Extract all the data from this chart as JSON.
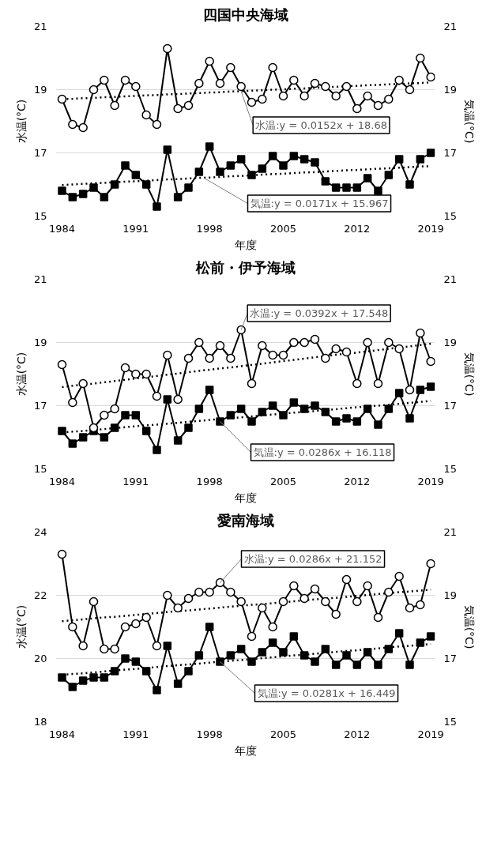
{
  "chart_data": [
    {
      "type": "line",
      "title": "四国中央海域",
      "xlabel": "年度",
      "ylabel": "水温(°C)",
      "y2label": "気温(°C)",
      "xlim": [
        1983.4,
        2019.4
      ],
      "xticks": [
        1984,
        1991,
        1998,
        2005,
        2012,
        2019
      ],
      "ylim": [
        15,
        21
      ],
      "yticks": [
        15,
        17,
        19,
        21
      ],
      "y2lim": [
        15,
        21
      ],
      "y2ticks": [
        15,
        17,
        19,
        21
      ],
      "grid": "y",
      "x": [
        1984,
        1985,
        1986,
        1987,
        1988,
        1989,
        1990,
        1991,
        1992,
        1993,
        1994,
        1995,
        1996,
        1997,
        1998,
        1999,
        2000,
        2001,
        2002,
        2003,
        2004,
        2005,
        2006,
        2007,
        2008,
        2009,
        2010,
        2011,
        2012,
        2013,
        2014,
        2015,
        2016,
        2017,
        2018,
        2019
      ],
      "series": [
        {
          "color": "#000000",
          "marker": "circle",
          "values": [
            18.7,
            17.9,
            17.8,
            19.0,
            19.3,
            18.5,
            19.3,
            19.1,
            18.2,
            17.9,
            20.3,
            18.4,
            18.5,
            19.2,
            19.9,
            19.2,
            19.7,
            19.1,
            18.6,
            18.7,
            19.7,
            18.8,
            19.3,
            18.8,
            19.2,
            19.1,
            18.8,
            19.1,
            18.4,
            18.8,
            18.5,
            18.7,
            19.3,
            19.0,
            20.0,
            19.4
          ]
        },
        {
          "color": "#000000",
          "marker": "square",
          "axis": "y2",
          "values": [
            15.8,
            15.6,
            15.7,
            15.9,
            15.6,
            16.0,
            16.6,
            16.3,
            16.0,
            15.3,
            17.1,
            15.6,
            15.9,
            16.4,
            17.2,
            16.4,
            16.6,
            16.8,
            16.3,
            16.5,
            16.9,
            16.6,
            16.9,
            16.8,
            16.7,
            16.1,
            15.9,
            15.9,
            15.9,
            16.2,
            15.8,
            16.3,
            16.8,
            16.0,
            16.8,
            17.0
          ]
        },
        {
          "type": "line",
          "color": "#000000",
          "marker": "none",
          "line_style": "dotted",
          "values": [
            18.7,
            18.71,
            18.73,
            18.74,
            18.76,
            18.77,
            18.79,
            18.8,
            18.82,
            18.83,
            18.85,
            18.86,
            18.88,
            18.89,
            18.91,
            18.92,
            18.94,
            18.95,
            18.97,
            18.98,
            19.0,
            19.01,
            19.03,
            19.04,
            19.06,
            19.08,
            19.09,
            19.11,
            19.12,
            19.14,
            19.15,
            19.17,
            19.18,
            19.2,
            19.21,
            19.23
          ]
        },
        {
          "type": "line",
          "color": "#000000",
          "marker": "none",
          "line_style": "dotted",
          "axis": "y2",
          "values": [
            15.98,
            16.0,
            16.02,
            16.04,
            16.05,
            16.07,
            16.09,
            16.1,
            16.12,
            16.14,
            16.16,
            16.17,
            16.19,
            16.21,
            16.22,
            16.24,
            16.26,
            16.27,
            16.29,
            16.31,
            16.33,
            16.34,
            16.36,
            16.38,
            16.39,
            16.41,
            16.43,
            16.45,
            16.46,
            16.48,
            16.5,
            16.51,
            16.53,
            16.55,
            16.57,
            16.58
          ]
        }
      ],
      "annotations": [
        {
          "text": "水温:y = 0.0152x + 18.68",
          "x": 2001,
          "y": 18.95
        },
        {
          "text": "気温:y = 0.0171x + 15.967",
          "x": 1997.5,
          "y": 16.2
        }
      ]
    },
    {
      "type": "line",
      "title": "松前・伊予海域",
      "xlabel": "年度",
      "ylabel": "水温(°C)",
      "y2label": "気温(°C)",
      "xlim": [
        1983.4,
        2019.4
      ],
      "xticks": [
        1984,
        1991,
        1998,
        2005,
        2012,
        2019
      ],
      "ylim": [
        15,
        21
      ],
      "yticks": [
        15,
        17,
        19,
        21
      ],
      "y2lim": [
        15,
        21
      ],
      "y2ticks": [
        15,
        17,
        19,
        21
      ],
      "grid": "y",
      "x": [
        1984,
        1985,
        1986,
        1987,
        1988,
        1989,
        1990,
        1991,
        1992,
        1993,
        1994,
        1995,
        1996,
        1997,
        1998,
        1999,
        2000,
        2001,
        2002,
        2003,
        2004,
        2005,
        2006,
        2007,
        2008,
        2009,
        2010,
        2011,
        2012,
        2013,
        2014,
        2015,
        2016,
        2017,
        2018,
        2019
      ],
      "series": [
        {
          "color": "#000000",
          "marker": "circle",
          "values": [
            18.3,
            17.1,
            17.7,
            16.3,
            16.7,
            16.9,
            18.2,
            18.0,
            18.0,
            17.3,
            18.6,
            17.2,
            18.5,
            19.0,
            18.5,
            18.9,
            18.5,
            19.4,
            17.7,
            18.9,
            18.6,
            18.6,
            19.0,
            19.0,
            19.1,
            18.5,
            18.8,
            18.7,
            17.7,
            19.0,
            17.7,
            19.0,
            18.8,
            17.5,
            19.3,
            18.4
          ]
        },
        {
          "color": "#000000",
          "marker": "square",
          "axis": "y2",
          "values": [
            16.2,
            15.8,
            16.0,
            16.2,
            16.0,
            16.3,
            16.7,
            16.7,
            16.2,
            15.6,
            17.2,
            15.9,
            16.3,
            16.9,
            17.5,
            16.5,
            16.7,
            16.9,
            16.5,
            16.8,
            17.0,
            16.7,
            17.1,
            16.9,
            17.0,
            16.8,
            16.5,
            16.6,
            16.5,
            16.9,
            16.4,
            16.9,
            17.4,
            16.6,
            17.5,
            17.6
          ]
        },
        {
          "type": "line",
          "color": "#000000",
          "marker": "none",
          "line_style": "dotted",
          "values": [
            17.59,
            17.63,
            17.67,
            17.7,
            17.74,
            17.78,
            17.82,
            17.86,
            17.9,
            17.94,
            17.98,
            18.02,
            18.06,
            18.1,
            18.14,
            18.18,
            18.21,
            18.25,
            18.29,
            18.33,
            18.37,
            18.41,
            18.45,
            18.49,
            18.53,
            18.57,
            18.61,
            18.65,
            18.68,
            18.72,
            18.76,
            18.8,
            18.84,
            18.88,
            18.92,
            18.96
          ]
        },
        {
          "type": "line",
          "color": "#000000",
          "marker": "none",
          "line_style": "dotted",
          "axis": "y2",
          "values": [
            16.15,
            16.18,
            16.2,
            16.23,
            16.26,
            16.29,
            16.32,
            16.35,
            16.38,
            16.4,
            16.43,
            16.46,
            16.49,
            16.52,
            16.55,
            16.58,
            16.6,
            16.63,
            16.66,
            16.69,
            16.72,
            16.75,
            16.78,
            16.8,
            16.83,
            16.86,
            16.89,
            16.92,
            16.95,
            16.98,
            17.0,
            17.03,
            17.06,
            17.09,
            17.12,
            17.15
          ]
        }
      ],
      "annotations": [
        {
          "text": "水温:y = 0.0392x + 17.548",
          "x": 2001,
          "y": 19.4
        },
        {
          "text": "気温:y = 0.0286x + 16.118",
          "x": 1999,
          "y": 16.5
        }
      ]
    },
    {
      "type": "line",
      "title": "愛南海域",
      "xlabel": "年度",
      "ylabel": "水温(°C)",
      "y2label": "気温(°C)",
      "xlim": [
        1983.4,
        2019.4
      ],
      "xticks": [
        1984,
        1991,
        1998,
        2005,
        2012,
        2019
      ],
      "ylim": [
        18,
        24
      ],
      "yticks": [
        18,
        20,
        22,
        24
      ],
      "y2lim": [
        15,
        21
      ],
      "y2ticks": [
        15,
        17,
        19,
        21
      ],
      "grid": "y",
      "x": [
        1984,
        1985,
        1986,
        1987,
        1988,
        1989,
        1990,
        1991,
        1992,
        1993,
        1994,
        1995,
        1996,
        1997,
        1998,
        1999,
        2000,
        2001,
        2002,
        2003,
        2004,
        2005,
        2006,
        2007,
        2008,
        2009,
        2010,
        2011,
        2012,
        2013,
        2014,
        2015,
        2016,
        2017,
        2018,
        2019
      ],
      "series": [
        {
          "color": "#000000",
          "marker": "circle",
          "values": [
            23.3,
            21.0,
            20.4,
            21.8,
            20.3,
            20.3,
            21.0,
            21.1,
            21.3,
            20.4,
            22.0,
            21.6,
            21.9,
            22.1,
            22.1,
            22.4,
            22.1,
            21.8,
            20.7,
            21.6,
            21.0,
            21.8,
            22.3,
            21.9,
            22.2,
            21.8,
            21.4,
            22.5,
            21.8,
            22.3,
            21.3,
            22.1,
            22.6,
            21.6,
            21.7,
            23.0
          ]
        },
        {
          "color": "#000000",
          "marker": "square",
          "axis": "y2",
          "values": [
            16.4,
            16.1,
            16.3,
            16.4,
            16.4,
            16.6,
            17.0,
            16.9,
            16.6,
            16.0,
            17.4,
            16.2,
            16.6,
            17.1,
            18.0,
            16.9,
            17.1,
            17.3,
            16.9,
            17.2,
            17.5,
            17.2,
            17.7,
            17.1,
            16.9,
            17.3,
            16.8,
            17.1,
            16.8,
            17.2,
            16.8,
            17.3,
            17.8,
            16.8,
            17.5,
            17.7
          ]
        },
        {
          "type": "line",
          "color": "#000000",
          "marker": "none",
          "line_style": "dotted",
          "values": [
            21.18,
            21.21,
            21.24,
            21.27,
            21.3,
            21.32,
            21.35,
            21.38,
            21.41,
            21.44,
            21.47,
            21.5,
            21.52,
            21.55,
            21.58,
            21.61,
            21.64,
            21.67,
            21.7,
            21.72,
            21.75,
            21.78,
            21.81,
            21.84,
            21.87,
            21.9,
            21.92,
            21.95,
            21.98,
            22.01,
            22.04,
            22.07,
            22.1,
            22.12,
            22.15,
            22.18
          ]
        },
        {
          "type": "line",
          "color": "#000000",
          "marker": "none",
          "line_style": "dotted",
          "axis": "y2",
          "values": [
            16.48,
            16.51,
            16.53,
            16.56,
            16.59,
            16.62,
            16.65,
            16.67,
            16.7,
            16.73,
            16.76,
            16.79,
            16.81,
            16.84,
            16.87,
            16.9,
            16.93,
            16.95,
            16.98,
            17.01,
            17.04,
            17.07,
            17.1,
            17.12,
            17.15,
            17.18,
            17.21,
            17.24,
            17.26,
            17.29,
            17.32,
            17.35,
            17.38,
            17.4,
            17.43,
            17.46
          ]
        }
      ],
      "annotations": [
        {
          "text": "水温:y = 0.0286x + 21.152",
          "x": 1999,
          "y": 22.4
        },
        {
          "text": "気温:y = 0.0281x + 16.449",
          "x": 1999,
          "y": 19.9
        }
      ]
    }
  ]
}
